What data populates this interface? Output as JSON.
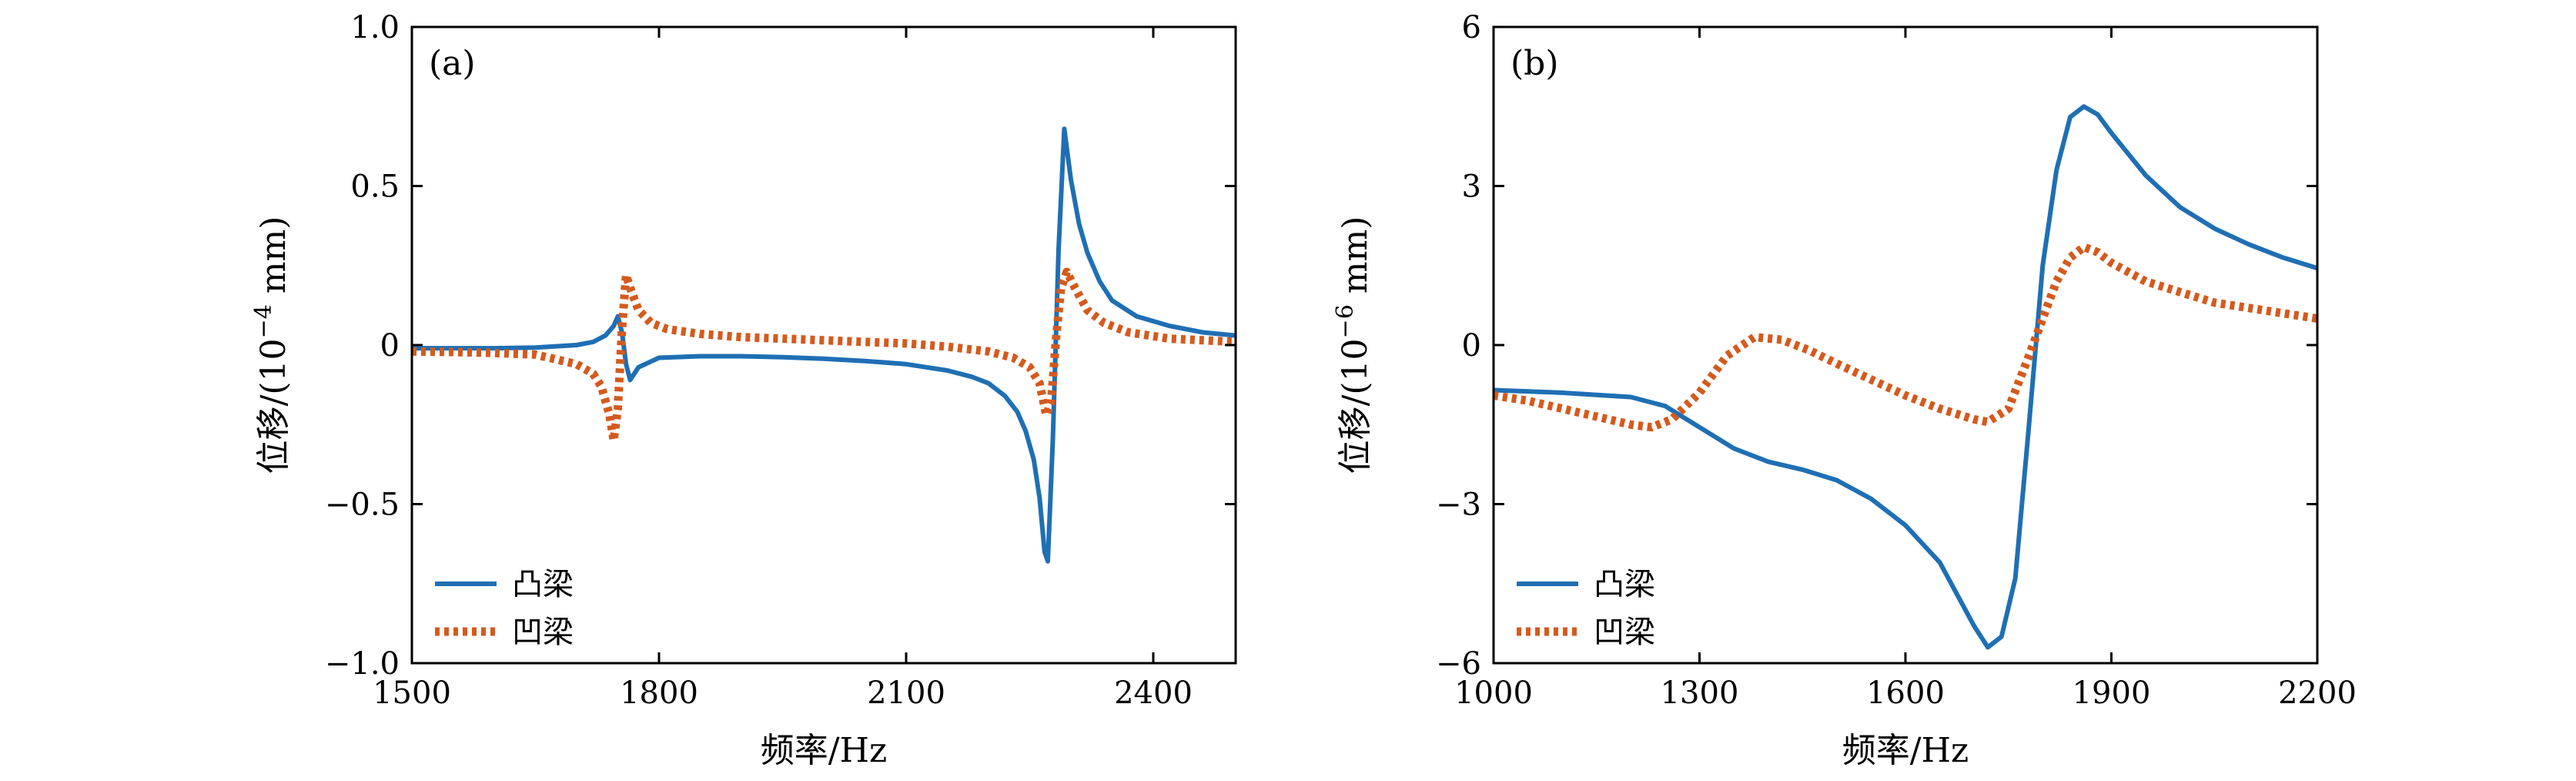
{
  "colors": {
    "convex": "#1f6fb4",
    "concave": "#d45a1e"
  },
  "chart_data": [
    {
      "type": "line",
      "panel_label": "(a)",
      "xlabel": "频率/Hz",
      "ylabel_main": "位移/(10",
      "ylabel_exp": "−4",
      "ylabel_unit": " mm)",
      "xlim": [
        1500,
        2500
      ],
      "ylim": [
        -1.0,
        1.0
      ],
      "xticks": [
        1500,
        1800,
        2100,
        2400
      ],
      "xtick_labels": [
        "1500",
        "1800",
        "2100",
        "2400"
      ],
      "yticks": [
        -1.0,
        -0.5,
        0,
        0.5,
        1.0
      ],
      "ytick_labels": [
        "−1.0",
        "−0.5",
        "0",
        "0.5",
        "1.0"
      ],
      "legend_position": "lower-left",
      "series": [
        {
          "name": "凸梁",
          "style": "solid",
          "color_key": "convex",
          "x": [
            1500,
            1550,
            1600,
            1650,
            1700,
            1720,
            1735,
            1745,
            1750,
            1755,
            1760,
            1765,
            1775,
            1800,
            1850,
            1900,
            1950,
            2000,
            2050,
            2100,
            2150,
            2180,
            2200,
            2220,
            2235,
            2245,
            2255,
            2262,
            2268,
            2272,
            2278,
            2285,
            2292,
            2300,
            2310,
            2320,
            2335,
            2350,
            2380,
            2420,
            2460,
            2500
          ],
          "y": [
            -0.01,
            -0.01,
            -0.01,
            -0.008,
            0.0,
            0.01,
            0.03,
            0.06,
            0.09,
            0.04,
            -0.06,
            -0.11,
            -0.07,
            -0.04,
            -0.035,
            -0.035,
            -0.038,
            -0.043,
            -0.05,
            -0.06,
            -0.08,
            -0.1,
            -0.12,
            -0.16,
            -0.21,
            -0.27,
            -0.36,
            -0.48,
            -0.65,
            -0.68,
            -0.3,
            0.3,
            0.68,
            0.52,
            0.38,
            0.29,
            0.2,
            0.14,
            0.09,
            0.06,
            0.04,
            0.03
          ]
        },
        {
          "name": "凹梁",
          "style": "dotted",
          "color_key": "concave",
          "x": [
            1500,
            1550,
            1600,
            1650,
            1700,
            1720,
            1730,
            1740,
            1745,
            1750,
            1755,
            1760,
            1765,
            1775,
            1790,
            1810,
            1850,
            1900,
            1950,
            2000,
            2050,
            2100,
            2150,
            2200,
            2230,
            2250,
            2262,
            2270,
            2276,
            2282,
            2288,
            2295,
            2305,
            2320,
            2340,
            2370,
            2420,
            2460,
            2500
          ],
          "y": [
            -0.02,
            -0.022,
            -0.025,
            -0.03,
            -0.06,
            -0.09,
            -0.13,
            -0.22,
            -0.3,
            -0.2,
            0.05,
            0.22,
            0.18,
            0.11,
            0.07,
            0.05,
            0.035,
            0.025,
            0.02,
            0.015,
            0.01,
            0.005,
            -0.005,
            -0.02,
            -0.04,
            -0.07,
            -0.12,
            -0.22,
            -0.18,
            0.02,
            0.18,
            0.23,
            0.18,
            0.11,
            0.07,
            0.04,
            0.02,
            0.015,
            0.01
          ]
        }
      ]
    },
    {
      "type": "line",
      "panel_label": "(b)",
      "xlabel": "频率/Hz",
      "ylabel_main": "位移/(10",
      "ylabel_exp": "−6",
      "ylabel_unit": " mm)",
      "xlim": [
        1000,
        2200
      ],
      "ylim": [
        -6,
        6
      ],
      "xticks": [
        1000,
        1300,
        1600,
        1900,
        2200
      ],
      "xtick_labels": [
        "1000",
        "1300",
        "1600",
        "1900",
        "2200"
      ],
      "yticks": [
        -6,
        -3,
        0,
        3,
        6
      ],
      "ytick_labels": [
        "−6",
        "−3",
        "0",
        "3",
        "6"
      ],
      "legend_position": "lower-left",
      "series": [
        {
          "name": "凸梁",
          "style": "solid",
          "color_key": "convex",
          "x": [
            1000,
            1100,
            1200,
            1250,
            1300,
            1350,
            1400,
            1450,
            1500,
            1550,
            1600,
            1650,
            1700,
            1720,
            1740,
            1760,
            1780,
            1800,
            1820,
            1840,
            1860,
            1880,
            1900,
            1950,
            2000,
            2050,
            2100,
            2150,
            2200
          ],
          "y": [
            -0.85,
            -0.9,
            -0.98,
            -1.15,
            -1.55,
            -1.95,
            -2.2,
            -2.35,
            -2.55,
            -2.9,
            -3.4,
            -4.1,
            -5.3,
            -5.7,
            -5.5,
            -4.4,
            -1.5,
            1.5,
            3.3,
            4.3,
            4.5,
            4.35,
            4.0,
            3.2,
            2.6,
            2.2,
            1.9,
            1.65,
            1.45
          ]
        },
        {
          "name": "凹梁",
          "style": "dotted",
          "color_key": "concave",
          "x": [
            1000,
            1050,
            1100,
            1150,
            1200,
            1230,
            1260,
            1300,
            1340,
            1380,
            1420,
            1460,
            1500,
            1550,
            1600,
            1650,
            1700,
            1720,
            1750,
            1780,
            1800,
            1820,
            1840,
            1860,
            1880,
            1900,
            1950,
            2000,
            2050,
            2100,
            2150,
            2200
          ],
          "y": [
            -0.95,
            -1.05,
            -1.2,
            -1.35,
            -1.5,
            -1.55,
            -1.4,
            -0.9,
            -0.2,
            0.15,
            0.1,
            -0.1,
            -0.35,
            -0.65,
            -0.95,
            -1.2,
            -1.4,
            -1.45,
            -1.2,
            -0.2,
            0.5,
            1.2,
            1.65,
            1.85,
            1.75,
            1.55,
            1.2,
            1.0,
            0.8,
            0.7,
            0.6,
            0.5
          ]
        }
      ]
    }
  ]
}
